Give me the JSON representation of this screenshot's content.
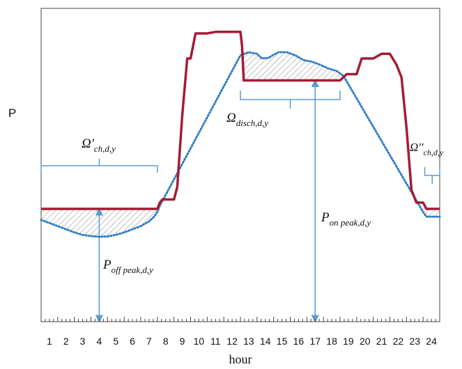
{
  "chart_data": {
    "type": "line",
    "title": "",
    "xlabel": "hour",
    "ylabel": "P",
    "xlim": [
      0,
      24
    ],
    "categories": [
      "1",
      "2",
      "3",
      "4",
      "5",
      "6",
      "7",
      "8",
      "9",
      "10",
      "11",
      "12",
      "13",
      "14",
      "15",
      "16",
      "17",
      "18",
      "19",
      "20",
      "21",
      "22",
      "23",
      "24"
    ],
    "series": [
      {
        "name": "",
        "style": "solid",
        "color": "#a31c34",
        "x": [
          0,
          7,
          7.15,
          7.3,
          8,
          8.2,
          8.5,
          8.8,
          9,
          9.3,
          10,
          10.5,
          11,
          11.6,
          12,
          12.1,
          12.2,
          13,
          14,
          15,
          16,
          17,
          18,
          18.4,
          19,
          19.3,
          20,
          20.5,
          21,
          21.4,
          21.7,
          22,
          22.3,
          22.6,
          23,
          23.2,
          24
        ],
        "y": [
          0.36,
          0.36,
          0.38,
          0.39,
          0.39,
          0.43,
          0.66,
          0.84,
          0.84,
          0.92,
          0.92,
          0.925,
          0.925,
          0.925,
          0.925,
          0.88,
          0.77,
          0.77,
          0.77,
          0.77,
          0.77,
          0.77,
          0.77,
          0.79,
          0.79,
          0.84,
          0.84,
          0.855,
          0.855,
          0.82,
          0.78,
          0.62,
          0.42,
          0.38,
          0.38,
          0.36,
          0.36
        ]
      },
      {
        "name": "",
        "style": "dotted",
        "color": "#2f7ec4",
        "x": [
          0,
          0.5,
          1,
          1.5,
          2,
          2.5,
          3,
          3.5,
          4,
          4.5,
          5,
          5.5,
          6,
          6.5,
          6.8,
          7,
          7.15,
          12,
          12.5,
          13,
          13.3,
          13.7,
          14,
          14.3,
          14.8,
          15.3,
          15.8,
          16.3,
          16.8,
          17.3,
          17.8,
          18.2,
          23,
          23.2,
          24
        ],
        "y": [
          0.325,
          0.315,
          0.305,
          0.295,
          0.285,
          0.277,
          0.273,
          0.271,
          0.272,
          0.277,
          0.285,
          0.295,
          0.305,
          0.32,
          0.335,
          0.35,
          0.37,
          0.85,
          0.86,
          0.855,
          0.84,
          0.842,
          0.852,
          0.86,
          0.86,
          0.85,
          0.835,
          0.83,
          0.82,
          0.808,
          0.8,
          0.785,
          0.35,
          0.335,
          0.335
        ]
      }
    ],
    "annotations": [
      {
        "label": "Ω'ch,d,y",
        "base": "Ω'",
        "sub": "ch,d,y",
        "range": [
          0,
          7
        ]
      },
      {
        "label": "Ωdisch,d,y",
        "base": "Ω",
        "sub": "disch,d,y",
        "range": [
          12,
          18
        ]
      },
      {
        "label": "Ω''ch,d,y",
        "base": "Ω''",
        "sub": "ch,d,y",
        "range": [
          23,
          24
        ]
      },
      {
        "label": "Poff peak,d,y",
        "base": "P",
        "sub": "off peak,d,y",
        "x": 3.5
      },
      {
        "label": "Pon peak,d,y",
        "base": "P",
        "sub": "on peak,d,y",
        "x": 16.5
      }
    ],
    "grid": false,
    "legend": "none"
  }
}
